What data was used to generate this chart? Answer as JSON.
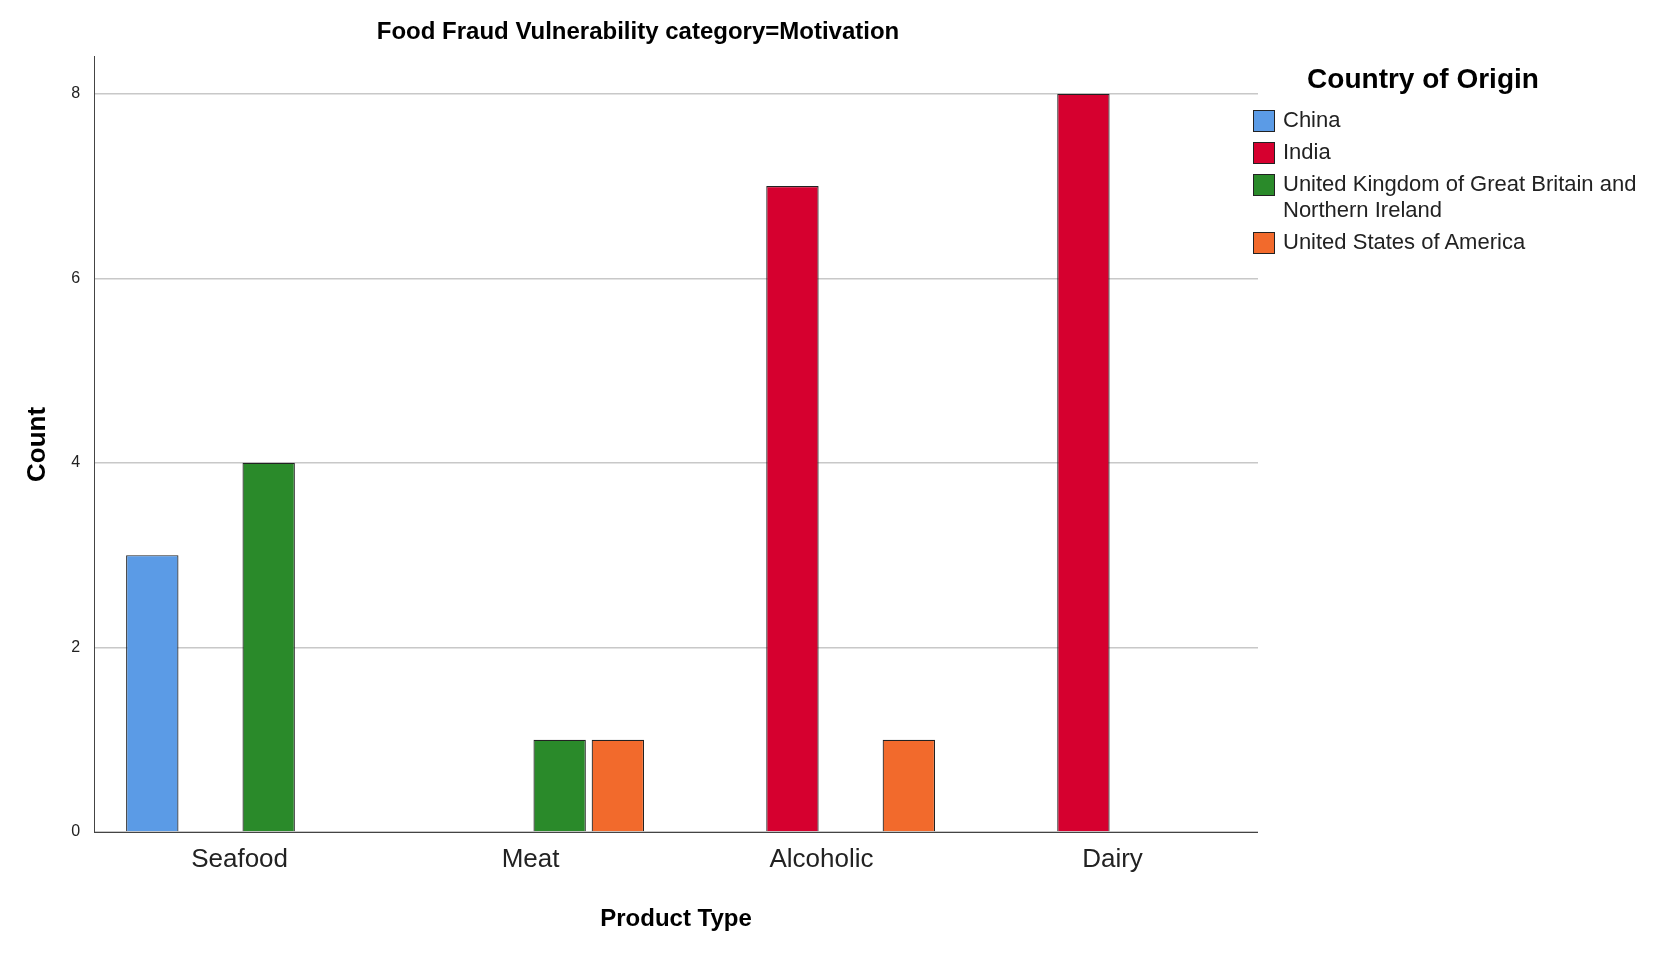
{
  "chart_data": {
    "type": "bar",
    "title": "Food Fraud Vulnerability category=Motivation",
    "xlabel": "Product Type",
    "ylabel": "Count",
    "legend_title": "Country of Origin",
    "categories": [
      "Seafood",
      "Meat",
      "Alcoholic",
      "Dairy"
    ],
    "series": [
      {
        "name": "China",
        "color": "#5b9be6",
        "values": [
          3,
          null,
          null,
          null
        ]
      },
      {
        "name": "India",
        "color": "#d6002f",
        "values": [
          null,
          null,
          7,
          8
        ]
      },
      {
        "name": "United Kingdom of Great Britain and Northern Ireland",
        "color": "#2a8a2a",
        "values": [
          4,
          1,
          null,
          null
        ]
      },
      {
        "name": "United States of America",
        "color": "#f26a2c",
        "values": [
          null,
          1,
          1,
          null
        ]
      }
    ],
    "ylim": [
      0,
      8.4
    ],
    "yticks": [
      0,
      2,
      4,
      6,
      8
    ],
    "grid": "y",
    "legend": "top right"
  }
}
